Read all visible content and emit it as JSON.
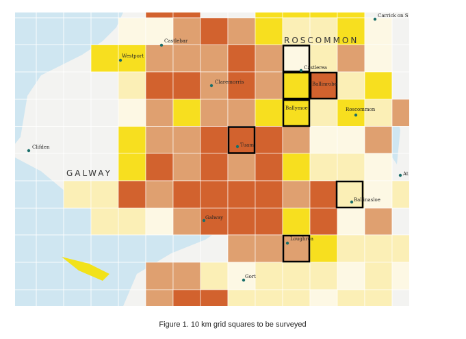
{
  "map": {
    "regions": [
      "ROSCOMMON",
      "GALWAY"
    ],
    "places": [
      "Carrick on S",
      "Castlebar",
      "Westport",
      "Castlerea",
      "Claremorris",
      "Ballinrobe",
      "Ballymoe",
      "Roscommon",
      "Clifden",
      "Tuam",
      "At",
      "Ballinasloe",
      "Galway",
      "Loughrea",
      "Gort"
    ]
  },
  "caption": "Figure 1. 10 km grid squares to be surveyed"
}
